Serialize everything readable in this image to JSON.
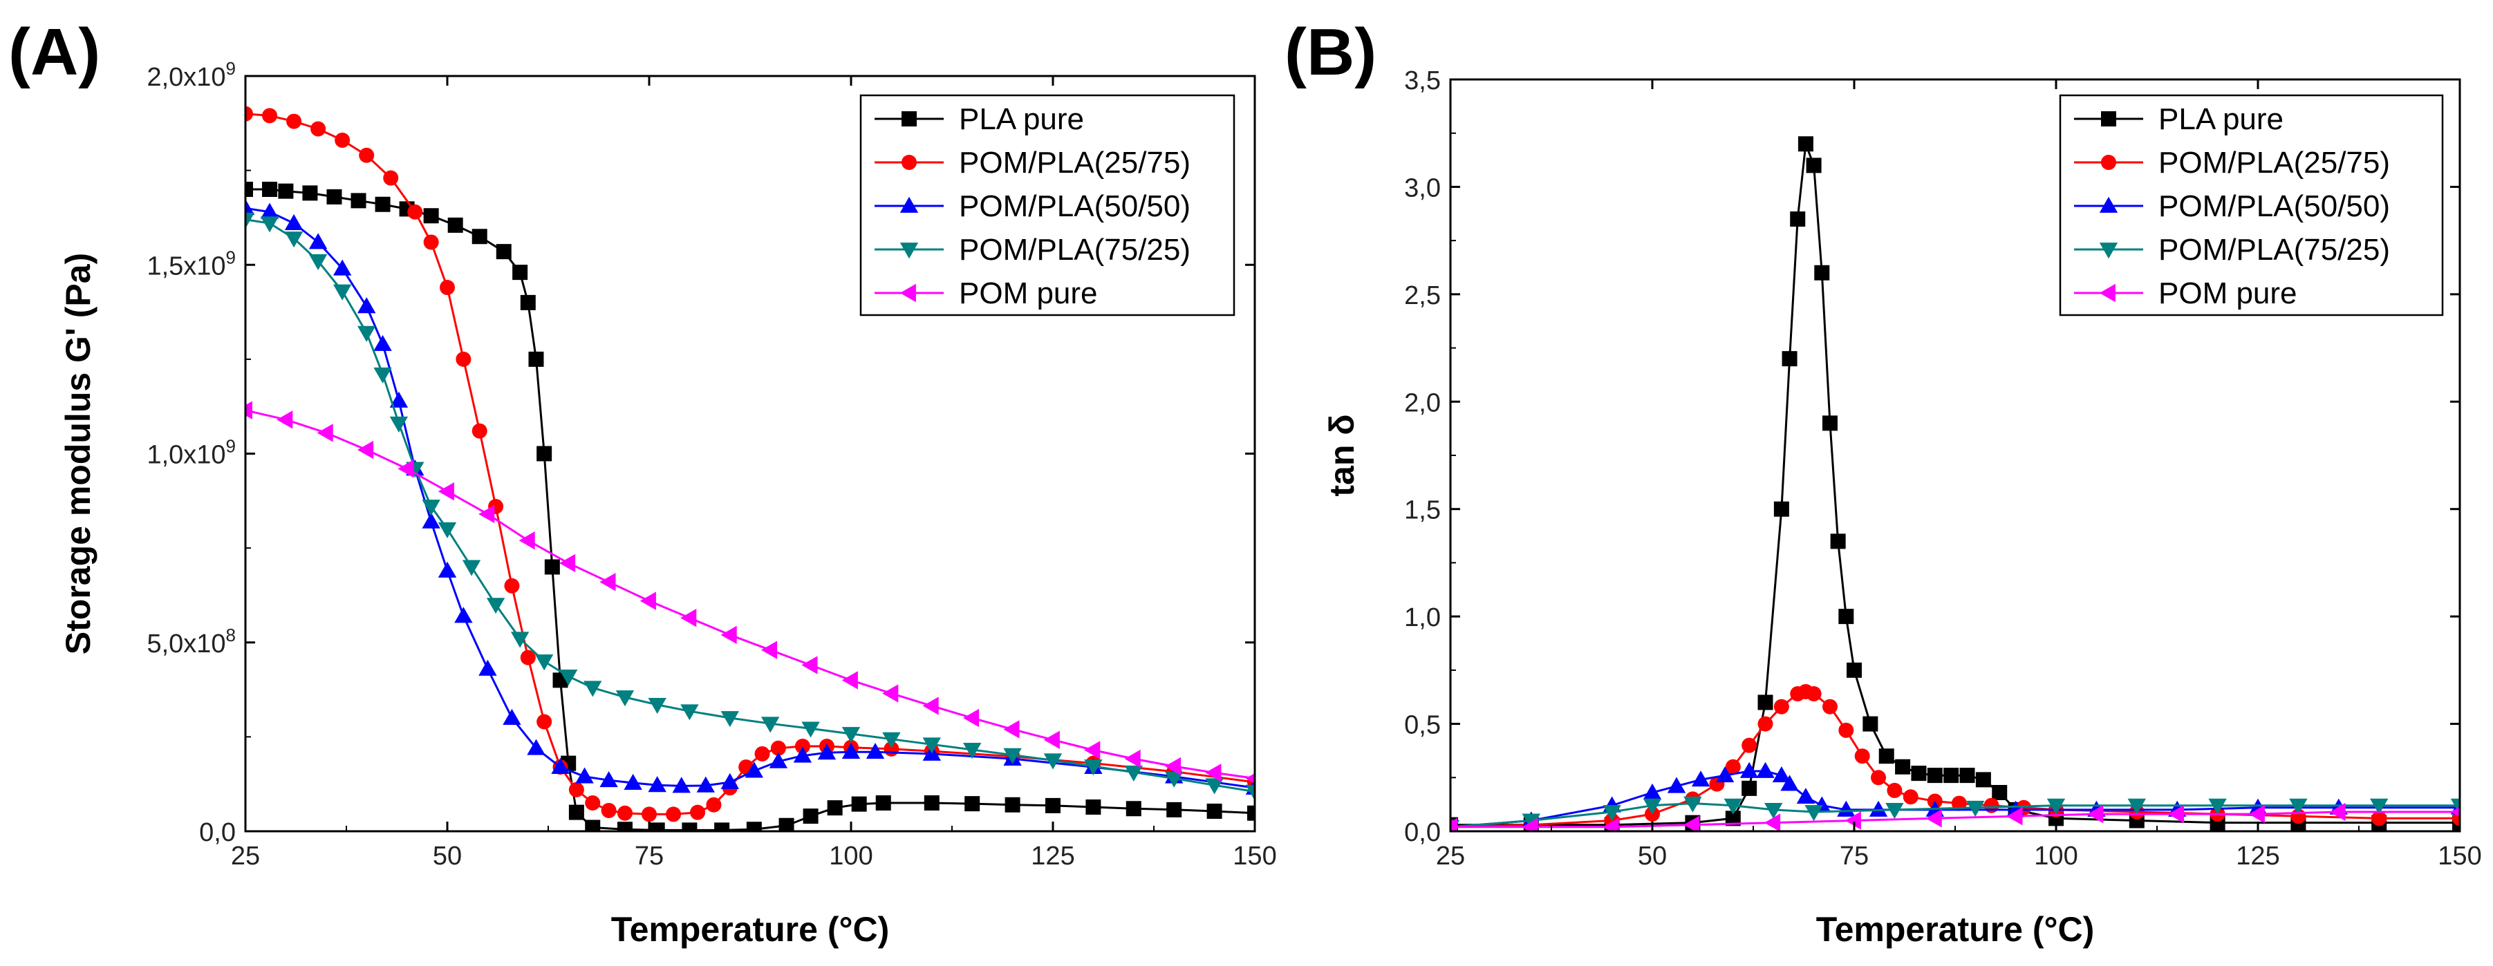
{
  "chart_data": [
    {
      "panel": "(A)",
      "type": "line",
      "title": "",
      "xlabel": "Temperature (°C)",
      "ylabel": "Storage modulus G' (Pa)",
      "xlim": [
        25,
        150
      ],
      "ylim": [
        0,
        2000000000
      ],
      "xticks": [
        25,
        50,
        75,
        100,
        125,
        150
      ],
      "xtick_labels": [
        "25",
        "50",
        "75",
        "100",
        "125",
        "150"
      ],
      "yticks": [
        0,
        500000000,
        1000000000,
        1500000000,
        2000000000
      ],
      "ytick_labels": [
        {
          "mantissa": "0,0",
          "exp": ""
        },
        {
          "mantissa": "5,0x10",
          "exp": "8"
        },
        {
          "mantissa": "1,0x10",
          "exp": "9"
        },
        {
          "mantissa": "1,5x10",
          "exp": "9"
        },
        {
          "mantissa": "2,0x10",
          "exp": "9"
        }
      ],
      "legend_position": "top-right",
      "series": [
        {
          "name": "PLA pure",
          "color": "#000000",
          "marker": "square",
          "x": [
            25,
            28,
            30,
            33,
            36,
            39,
            42,
            45,
            48,
            51,
            54,
            57,
            59,
            60,
            61,
            62,
            63,
            64,
            65,
            66,
            68,
            72,
            76,
            80,
            84,
            88,
            92,
            95,
            98,
            101,
            104,
            110,
            115,
            120,
            125,
            130,
            135,
            140,
            145,
            150
          ],
          "y": [
            1700000000,
            1700000000,
            1695000000,
            1690000000,
            1680000000,
            1670000000,
            1660000000,
            1648000000,
            1630000000,
            1605000000,
            1575000000,
            1535000000,
            1480000000,
            1400000000,
            1250000000,
            1000000000,
            700000000,
            400000000,
            180000000,
            50000000,
            10000000,
            5000000,
            3000000,
            3000000,
            3000000,
            5000000,
            15000000,
            40000000,
            62000000,
            72000000,
            75000000,
            75000000,
            73000000,
            70000000,
            68000000,
            64000000,
            60000000,
            57000000,
            53000000,
            48000000
          ]
        },
        {
          "name": "POM/PLA(25/75)",
          "color": "#ff0000",
          "marker": "circle",
          "x": [
            25,
            28,
            31,
            34,
            37,
            40,
            43,
            46,
            48,
            50,
            52,
            54,
            56,
            58,
            60,
            62,
            64,
            66,
            68,
            70,
            72,
            75,
            78,
            81,
            83,
            85,
            87,
            89,
            91,
            94,
            97,
            100,
            105,
            110,
            120,
            130,
            140,
            150
          ],
          "y": [
            1900000000,
            1895000000,
            1880000000,
            1860000000,
            1830000000,
            1790000000,
            1730000000,
            1640000000,
            1560000000,
            1440000000,
            1250000000,
            1060000000,
            860000000,
            650000000,
            460000000,
            290000000,
            170000000,
            110000000,
            75000000,
            55000000,
            48000000,
            45000000,
            45000000,
            50000000,
            70000000,
            115000000,
            170000000,
            205000000,
            220000000,
            225000000,
            225000000,
            222000000,
            218000000,
            212000000,
            198000000,
            180000000,
            158000000,
            130000000
          ]
        },
        {
          "name": "POM/PLA(50/50)",
          "color": "#0000ff",
          "marker": "triangle-up",
          "x": [
            25,
            28,
            31,
            34,
            37,
            40,
            42,
            44,
            46,
            48,
            50,
            52,
            55,
            58,
            61,
            64,
            67,
            70,
            73,
            76,
            79,
            82,
            85,
            88,
            91,
            94,
            97,
            100,
            103,
            110,
            120,
            130,
            140,
            150
          ],
          "y": [
            1650000000,
            1640000000,
            1610000000,
            1560000000,
            1490000000,
            1390000000,
            1290000000,
            1140000000,
            960000000,
            820000000,
            690000000,
            570000000,
            430000000,
            300000000,
            220000000,
            170000000,
            145000000,
            135000000,
            128000000,
            122000000,
            120000000,
            121000000,
            130000000,
            160000000,
            185000000,
            200000000,
            208000000,
            210000000,
            210000000,
            205000000,
            192000000,
            170000000,
            145000000,
            115000000
          ]
        },
        {
          "name": "POM/PLA(75/25)",
          "color": "#008080",
          "marker": "triangle-down",
          "x": [
            25,
            28,
            31,
            34,
            37,
            40,
            42,
            44,
            46,
            48,
            50,
            53,
            56,
            59,
            62,
            65,
            68,
            72,
            76,
            80,
            85,
            90,
            95,
            100,
            105,
            110,
            115,
            120,
            125,
            130,
            135,
            140,
            145,
            150
          ],
          "y": [
            1620000000,
            1610000000,
            1570000000,
            1510000000,
            1430000000,
            1320000000,
            1210000000,
            1080000000,
            960000000,
            860000000,
            800000000,
            700000000,
            600000000,
            510000000,
            450000000,
            410000000,
            380000000,
            355000000,
            335000000,
            318000000,
            300000000,
            285000000,
            272000000,
            258000000,
            244000000,
            230000000,
            216000000,
            202000000,
            188000000,
            172000000,
            156000000,
            140000000,
            122000000,
            105000000
          ]
        },
        {
          "name": "POM pure",
          "color": "#ff00ff",
          "marker": "triangle-left",
          "x": [
            25,
            30,
            35,
            40,
            45,
            50,
            55,
            60,
            65,
            70,
            75,
            80,
            85,
            90,
            95,
            100,
            105,
            110,
            115,
            120,
            125,
            130,
            135,
            140,
            145,
            150
          ],
          "y": [
            1115000000,
            1090000000,
            1055000000,
            1010000000,
            960000000,
            900000000,
            840000000,
            770000000,
            710000000,
            660000000,
            610000000,
            565000000,
            520000000,
            480000000,
            440000000,
            400000000,
            365000000,
            332000000,
            300000000,
            270000000,
            242000000,
            215000000,
            192000000,
            172000000,
            155000000,
            140000000
          ]
        }
      ],
      "legend_entries": [
        "PLA pure",
        "POM/PLA(25/75)",
        "POM/PLA(50/50)",
        "POM/PLA(75/25)",
        "POM pure"
      ]
    },
    {
      "panel": "(B)",
      "type": "line",
      "title": "",
      "xlabel": "Temperature (°C)",
      "ylabel": "tan δ",
      "xlim": [
        25,
        150
      ],
      "ylim": [
        0,
        3.5
      ],
      "xticks": [
        25,
        50,
        75,
        100,
        125,
        150
      ],
      "xtick_labels": [
        "25",
        "50",
        "75",
        "100",
        "125",
        "150"
      ],
      "yticks": [
        0,
        0.5,
        1.0,
        1.5,
        2.0,
        2.5,
        3.0,
        3.5
      ],
      "ytick_labels": [
        {
          "mantissa": "0,0",
          "exp": ""
        },
        {
          "mantissa": "0,5",
          "exp": ""
        },
        {
          "mantissa": "1,0",
          "exp": ""
        },
        {
          "mantissa": "1,5",
          "exp": ""
        },
        {
          "mantissa": "2,0",
          "exp": ""
        },
        {
          "mantissa": "2,5",
          "exp": ""
        },
        {
          "mantissa": "3,0",
          "exp": ""
        },
        {
          "mantissa": "3,5",
          "exp": ""
        }
      ],
      "legend_position": "top-right",
      "series": [
        {
          "name": "PLA pure",
          "color": "#000000",
          "marker": "square",
          "x": [
            25,
            35,
            45,
            55,
            60,
            62,
            64,
            66,
            67,
            68,
            69,
            70,
            71,
            72,
            73,
            74,
            75,
            77,
            79,
            81,
            83,
            85,
            87,
            89,
            91,
            93,
            95,
            100,
            110,
            120,
            130,
            140,
            150
          ],
          "y": [
            0.03,
            0.03,
            0.03,
            0.04,
            0.06,
            0.2,
            0.6,
            1.5,
            2.2,
            2.85,
            3.2,
            3.1,
            2.6,
            1.9,
            1.35,
            1.0,
            0.75,
            0.5,
            0.35,
            0.3,
            0.27,
            0.26,
            0.26,
            0.26,
            0.24,
            0.18,
            0.1,
            0.06,
            0.05,
            0.04,
            0.04,
            0.04,
            0.04
          ]
        },
        {
          "name": "POM/PLA(25/75)",
          "color": "#ff0000",
          "marker": "circle",
          "x": [
            25,
            35,
            45,
            50,
            55,
            58,
            60,
            62,
            64,
            66,
            68,
            69,
            70,
            72,
            74,
            76,
            78,
            80,
            82,
            85,
            88,
            92,
            96,
            100,
            110,
            120,
            130,
            140,
            150
          ],
          "y": [
            0.02,
            0.03,
            0.05,
            0.08,
            0.15,
            0.22,
            0.3,
            0.4,
            0.5,
            0.58,
            0.64,
            0.65,
            0.64,
            0.58,
            0.47,
            0.35,
            0.25,
            0.19,
            0.16,
            0.14,
            0.13,
            0.12,
            0.11,
            0.1,
            0.09,
            0.08,
            0.07,
            0.06,
            0.06
          ]
        },
        {
          "name": "POM/PLA(50/50)",
          "color": "#0000ff",
          "marker": "triangle-up",
          "x": [
            25,
            35,
            45,
            50,
            53,
            56,
            59,
            62,
            64,
            66,
            67,
            69,
            71,
            74,
            78,
            85,
            95,
            105,
            115,
            125,
            135,
            150
          ],
          "y": [
            0.02,
            0.05,
            0.12,
            0.18,
            0.21,
            0.24,
            0.26,
            0.28,
            0.28,
            0.26,
            0.22,
            0.16,
            0.12,
            0.1,
            0.1,
            0.1,
            0.1,
            0.1,
            0.1,
            0.11,
            0.11,
            0.11
          ]
        },
        {
          "name": "POM/PLA(75/25)",
          "color": "#008080",
          "marker": "triangle-down",
          "x": [
            25,
            35,
            45,
            50,
            55,
            60,
            65,
            70,
            80,
            90,
            100,
            110,
            120,
            130,
            140,
            150
          ],
          "y": [
            0.02,
            0.05,
            0.09,
            0.12,
            0.13,
            0.12,
            0.1,
            0.09,
            0.1,
            0.11,
            0.12,
            0.12,
            0.12,
            0.12,
            0.12,
            0.12
          ]
        },
        {
          "name": "POM pure",
          "color": "#ff00ff",
          "marker": "triangle-left",
          "x": [
            25,
            35,
            45,
            55,
            65,
            75,
            85,
            95,
            105,
            115,
            125,
            135,
            150
          ],
          "y": [
            0.02,
            0.02,
            0.02,
            0.03,
            0.04,
            0.05,
            0.06,
            0.07,
            0.08,
            0.08,
            0.08,
            0.09,
            0.09
          ]
        }
      ],
      "legend_entries": [
        "PLA pure",
        "POM/PLA(25/75)",
        "POM/PLA(50/50)",
        "POM/PLA(75/25)",
        "POM pure"
      ]
    }
  ]
}
